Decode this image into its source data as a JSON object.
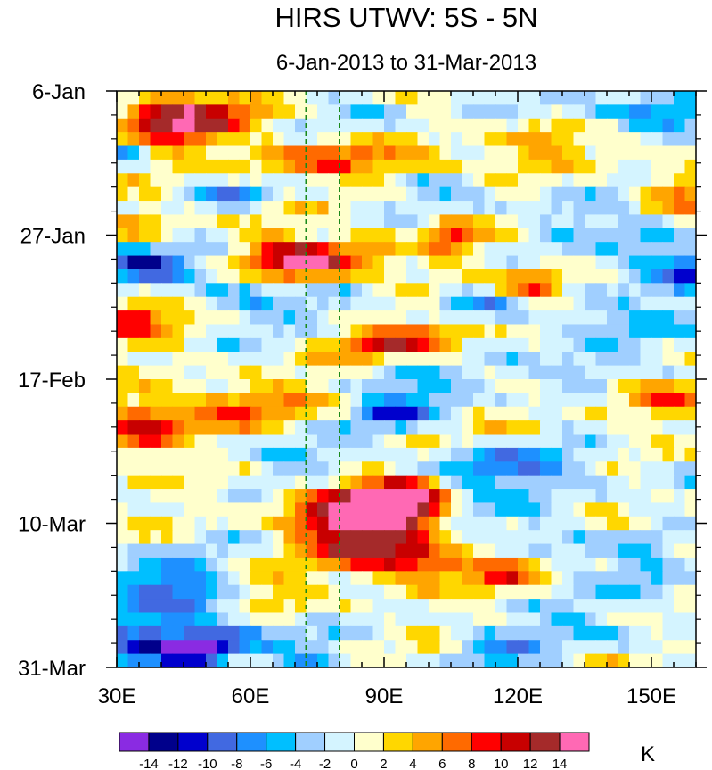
{
  "chart_data": {
    "type": "heatmap",
    "title": "HIRS UTWV: 5S - 5N",
    "subtitle": "6-Jan-2013 to 31-Mar-2013",
    "x_axis": {
      "range": [
        30,
        160
      ],
      "unit": "longitude (deg E)",
      "ticks": [
        {
          "value": 30,
          "label": "30E"
        },
        {
          "value": 60,
          "label": "60E"
        },
        {
          "value": 90,
          "label": "90E"
        },
        {
          "value": 120,
          "label": "120E"
        },
        {
          "value": 150,
          "label": "150E"
        }
      ]
    },
    "y_axis": {
      "range": [
        "6-Jan-2013",
        "31-Mar-2013"
      ],
      "direction": "time increases downward",
      "ticks": [
        {
          "day": 0,
          "label": "6-Jan"
        },
        {
          "day": 21,
          "label": "27-Jan"
        },
        {
          "day": 42,
          "label": "17-Feb"
        },
        {
          "day": 63,
          "label": "10-Mar"
        },
        {
          "day": 84,
          "label": "31-Mar"
        }
      ]
    },
    "reference_lines": [
      {
        "axis": "x",
        "value": 72.5,
        "style": "dashed",
        "color": "#1a8a1a"
      },
      {
        "axis": "x",
        "value": 80,
        "style": "dashed",
        "color": "#1a8a1a"
      }
    ],
    "colorbar": {
      "unit": "K",
      "bounds": [
        -16,
        -14,
        -12,
        -10,
        -8,
        -6,
        -4,
        -2,
        0,
        2,
        4,
        6,
        8,
        10,
        12,
        14,
        16
      ],
      "tick_labels": [
        "-14",
        "-12",
        "-10",
        "-8",
        "-6",
        "-4",
        "-2",
        "0",
        "2",
        "4",
        "6",
        "8",
        "10",
        "12",
        "14"
      ],
      "colors": [
        "#8a2be2",
        "#00008b",
        "#0000cd",
        "#4169e1",
        "#1e90ff",
        "#00bfff",
        "#a0cfff",
        "#d4f4ff",
        "#ffffcc",
        "#ffd700",
        "#ffa500",
        "#ff6a00",
        "#ff0000",
        "#c80000",
        "#a52a2a",
        "#ff69b4"
      ]
    },
    "grid": {
      "x_step_deg": 2.5,
      "y_step_days": 2
    },
    "anomaly_features": [
      {
        "lon": 95,
        "day": 60,
        "value": 15.5,
        "spread_lon": 6,
        "spread_day": 2.2
      },
      {
        "lon": 86,
        "day": 62,
        "value": 11,
        "spread_lon": 9,
        "spread_day": 3.5
      },
      {
        "lon": 78,
        "day": 62,
        "value": 7,
        "spread_lon": 8,
        "spread_day": 3
      },
      {
        "lon": 90,
        "day": 67,
        "value": 6,
        "spread_lon": 10,
        "spread_day": 2.5
      },
      {
        "lon": 98,
        "day": 69,
        "value": 8,
        "spread_lon": 8,
        "spread_day": 1.8
      },
      {
        "lon": 118,
        "day": 70,
        "value": 7,
        "spread_lon": 6,
        "spread_day": 2
      },
      {
        "lon": 75,
        "day": 25.5,
        "value": 10,
        "spread_lon": 8,
        "spread_day": 1.8
      },
      {
        "lon": 68,
        "day": 24,
        "value": 7,
        "spread_lon": 6,
        "spread_day": 2.5
      },
      {
        "lon": 85,
        "day": 23,
        "value": 5,
        "spread_lon": 6,
        "spread_day": 2
      },
      {
        "lon": 105,
        "day": 21.5,
        "value": 8,
        "spread_lon": 4,
        "spread_day": 2
      },
      {
        "lon": 123.5,
        "day": 29,
        "value": 11,
        "spread_lon": 5,
        "spread_day": 2
      },
      {
        "lon": 45,
        "day": 5,
        "value": 9,
        "spread_lon": 8,
        "spread_day": 2.5
      },
      {
        "lon": 38,
        "day": 3.5,
        "value": 7,
        "spread_lon": 6,
        "spread_day": 2
      },
      {
        "lon": 57,
        "day": 3,
        "value": 5,
        "spread_lon": 8,
        "spread_day": 2.5
      },
      {
        "lon": 70,
        "day": 10,
        "value": 5,
        "spread_lon": 12,
        "spread_day": 2
      },
      {
        "lon": 95,
        "day": 10.5,
        "value": 5,
        "spread_lon": 14,
        "spread_day": 1.5
      },
      {
        "lon": 125,
        "day": 7.5,
        "value": 5,
        "spread_lon": 8,
        "spread_day": 2
      },
      {
        "lon": 155,
        "day": 14.5,
        "value": 6,
        "spread_lon": 6,
        "spread_day": 2.5
      },
      {
        "lon": 34,
        "day": 33,
        "value": 10,
        "spread_lon": 5,
        "spread_day": 2
      },
      {
        "lon": 45,
        "day": 29,
        "value": 5,
        "spread_lon": 8,
        "spread_day": 2
      },
      {
        "lon": 90,
        "day": 37,
        "value": 8,
        "spread_lon": 8,
        "spread_day": 1.5
      },
      {
        "lon": 100,
        "day": 35.5,
        "value": 5,
        "spread_lon": 8,
        "spread_day": 2
      },
      {
        "lon": 150,
        "day": 44,
        "value": 7,
        "spread_lon": 10,
        "spread_day": 1.5
      },
      {
        "lon": 36,
        "day": 49.5,
        "value": 9,
        "spread_lon": 6,
        "spread_day": 3
      },
      {
        "lon": 50,
        "day": 47,
        "value": 5,
        "spread_lon": 10,
        "spread_day": 2.5
      },
      {
        "lon": 65,
        "day": 45,
        "value": 4,
        "spread_lon": 10,
        "spread_day": 2
      },
      {
        "lon": 118,
        "day": 48,
        "value": 3,
        "spread_lon": 6,
        "spread_day": 2
      },
      {
        "lon": 64,
        "day": 73,
        "value": 4,
        "spread_lon": 6,
        "spread_day": 2
      },
      {
        "lon": 140,
        "day": 63,
        "value": 4,
        "spread_lon": 8,
        "spread_day": 2
      },
      {
        "lon": 35,
        "day": 19,
        "value": 4,
        "spread_lon": 6,
        "spread_day": 2
      },
      {
        "lon": 36,
        "day": 80.5,
        "value": -9,
        "spread_lon": 9,
        "spread_day": 2.5
      },
      {
        "lon": 48,
        "day": 81.5,
        "value": -13,
        "spread_lon": 5,
        "spread_day": 1.6
      },
      {
        "lon": 40,
        "day": 72,
        "value": -8,
        "spread_lon": 10,
        "spread_day": 3
      },
      {
        "lon": 56,
        "day": 79,
        "value": -6,
        "spread_lon": 8,
        "spread_day": 2.5
      },
      {
        "lon": 36,
        "day": 26,
        "value": -11,
        "spread_lon": 6,
        "spread_day": 2
      },
      {
        "lon": 48,
        "day": 28,
        "value": -6,
        "spread_lon": 8,
        "spread_day": 2
      },
      {
        "lon": 118,
        "day": 55,
        "value": -7,
        "spread_lon": 14,
        "spread_day": 2.5
      },
      {
        "lon": 128,
        "day": 64,
        "value": -5,
        "spread_lon": 12,
        "spread_day": 3
      },
      {
        "lon": 150,
        "day": 24,
        "value": -6,
        "spread_lon": 8,
        "spread_day": 4
      },
      {
        "lon": 158,
        "day": 26,
        "value": -8,
        "spread_lon": 3,
        "spread_day": 2
      },
      {
        "lon": 92,
        "day": 47,
        "value": -8,
        "spread_lon": 6,
        "spread_day": 1.5
      },
      {
        "lon": 100,
        "day": 44,
        "value": -5,
        "spread_lon": 10,
        "spread_day": 2
      },
      {
        "lon": 115,
        "day": 31,
        "value": -5,
        "spread_lon": 10,
        "spread_day": 1.5
      },
      {
        "lon": 140,
        "day": 33,
        "value": -5,
        "spread_lon": 10,
        "spread_day": 2
      },
      {
        "lon": 145,
        "day": 3,
        "value": -6,
        "spread_lon": 10,
        "spread_day": 1.5
      },
      {
        "lon": 155,
        "day": 2,
        "value": -4,
        "spread_lon": 6,
        "spread_day": 2
      },
      {
        "lon": 87,
        "day": 3,
        "value": -4,
        "spread_lon": 6,
        "spread_day": 1.5
      },
      {
        "lon": 58,
        "day": 15,
        "value": -5,
        "spread_lon": 8,
        "spread_day": 1.2
      },
      {
        "lon": 32,
        "day": 9,
        "value": -6,
        "spread_lon": 3,
        "spread_day": 1.2
      },
      {
        "lon": 68,
        "day": 53,
        "value": -5,
        "spread_lon": 10,
        "spread_day": 1.5
      },
      {
        "lon": 60,
        "day": 31,
        "value": -4,
        "spread_lon": 10,
        "spread_day": 2
      },
      {
        "lon": 82,
        "day": 30,
        "value": -4,
        "spread_lon": 6,
        "spread_day": 1.5
      },
      {
        "lon": 115,
        "day": 81,
        "value": -5,
        "spread_lon": 8,
        "spread_day": 2
      },
      {
        "lon": 135,
        "day": 78,
        "value": -4,
        "spread_lon": 10,
        "spread_day": 2
      },
      {
        "lon": 150,
        "day": 70,
        "value": -5,
        "spread_lon": 6,
        "spread_day": 3
      },
      {
        "lon": 74,
        "day": 83,
        "value": -5,
        "spread_lon": 6,
        "spread_day": 1.5
      },
      {
        "lon": 130,
        "day": 40,
        "value": -4,
        "spread_lon": 12,
        "spread_day": 2.5
      },
      {
        "lon": 105,
        "day": 14,
        "value": -4,
        "spread_lon": 8,
        "spread_day": 1.5
      },
      {
        "lon": 130,
        "day": 18,
        "value": -3,
        "spread_lon": 8,
        "spread_day": 2
      }
    ]
  }
}
